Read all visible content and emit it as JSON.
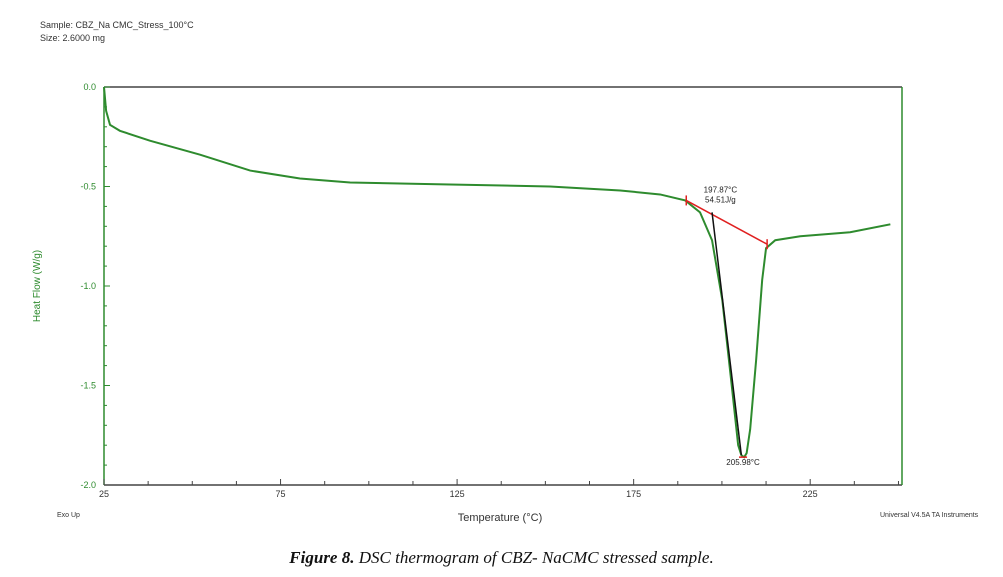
{
  "header": {
    "sample": "Sample: CBZ_Na CMC_Stress_100°C",
    "size": "Size: 2.6000 mg"
  },
  "footer": {
    "exo": "Exo Up",
    "instrument": "Universal V4.5A TA Instruments"
  },
  "caption": {
    "label": "Figure 8.",
    "text": " DSC thermogram of CBZ- NaCMC stressed sample."
  },
  "chart_data": {
    "type": "line",
    "title": "",
    "xlabel": "Temperature (°C)",
    "ylabel": "Heat Flow (W/g)",
    "xlim": [
      25,
      251
    ],
    "ylim": [
      -2.0,
      0.0
    ],
    "xticks": [
      25,
      75,
      125,
      175,
      225
    ],
    "xtick_labels": [
      "25",
      "75",
      "125",
      "175",
      "225"
    ],
    "yticks": [
      0.0,
      -0.5,
      -1.0,
      -1.5,
      -2.0
    ],
    "ytick_labels": [
      "0.0",
      "-0.5",
      "-1.0",
      "-1.5",
      "-2.0"
    ],
    "series": [
      {
        "name": "Heat Flow",
        "color": "#2e8b2e",
        "x": [
          25,
          25.6,
          26.7,
          29.5,
          38,
          52.2,
          66.4,
          80.5,
          94.7,
          123,
          151.3,
          171.2,
          182.5,
          189.6,
          193.8,
          197.2,
          200.1,
          202.9,
          204.6,
          205.5,
          206.3,
          207,
          208,
          209.7,
          211.4,
          212.5,
          215.1,
          222.2,
          236.3,
          247.7
        ],
        "y": [
          0,
          -0.12,
          -0.19,
          -0.22,
          -0.27,
          -0.34,
          -0.42,
          -0.46,
          -0.48,
          -0.49,
          -0.5,
          -0.52,
          -0.54,
          -0.57,
          -0.63,
          -0.77,
          -1.07,
          -1.52,
          -1.8,
          -1.85,
          -1.86,
          -1.84,
          -1.72,
          -1.37,
          -0.97,
          -0.81,
          -0.77,
          -0.75,
          -0.73,
          -0.69
        ]
      }
    ],
    "baseline": {
      "color": "#e02020",
      "x": [
        189.9,
        212.8
      ],
      "y": [
        -0.57,
        -0.79
      ]
    },
    "onset_line": {
      "color": "#111111",
      "x": [
        197.2,
        205.5
      ],
      "y": [
        -0.63,
        -1.85
      ]
    },
    "annotations": [
      {
        "text": "197.87°C",
        "x": 197.87,
        "y": -0.53
      },
      {
        "text": "54.51J/g",
        "x": 197.87,
        "y": -0.58
      },
      {
        "text": "205.98°C",
        "x": 205.98,
        "y": -1.9
      }
    ]
  }
}
